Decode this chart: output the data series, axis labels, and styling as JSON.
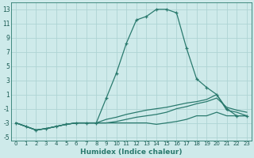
{
  "xlabel": "Humidex (Indice chaleur)",
  "ylabel": "",
  "background_color": "#ceeaea",
  "grid_color": "#aed4d4",
  "line_color": "#2a7a6e",
  "xlim": [
    -0.5,
    23.5
  ],
  "ylim": [
    -5.5,
    14.0
  ],
  "xticks": [
    0,
    1,
    2,
    3,
    4,
    5,
    6,
    7,
    8,
    9,
    10,
    11,
    12,
    13,
    14,
    15,
    16,
    17,
    18,
    19,
    20,
    21,
    22,
    23
  ],
  "yticks": [
    -5,
    -3,
    -1,
    1,
    3,
    5,
    7,
    9,
    11,
    13
  ],
  "lines": [
    {
      "x": [
        0,
        1,
        2,
        3,
        4,
        5,
        6,
        7,
        8,
        9,
        10,
        11,
        12,
        13,
        14,
        15,
        16,
        17,
        18,
        19,
        20,
        21,
        22,
        23
      ],
      "y": [
        -3.0,
        -3.5,
        -4.0,
        -3.8,
        -3.5,
        -3.2,
        -3.0,
        -3.0,
        -3.0,
        0.5,
        4.0,
        8.2,
        11.5,
        12.0,
        13.0,
        13.0,
        12.5,
        7.5,
        3.2,
        2.0,
        1.0,
        -1.0,
        -2.0,
        -2.0
      ],
      "marker": "+"
    },
    {
      "x": [
        0,
        1,
        2,
        3,
        4,
        5,
        6,
        7,
        8,
        9,
        10,
        11,
        12,
        13,
        14,
        15,
        16,
        17,
        18,
        19,
        20,
        21,
        22,
        23
      ],
      "y": [
        -3.0,
        -3.5,
        -4.0,
        -3.8,
        -3.5,
        -3.2,
        -3.0,
        -3.0,
        -3.0,
        -3.0,
        -3.0,
        -3.0,
        -3.0,
        -3.0,
        -3.2,
        -3.0,
        -2.8,
        -2.5,
        -2.0,
        -2.0,
        -1.5,
        -2.0,
        -2.0,
        -2.0
      ],
      "marker": null
    },
    {
      "x": [
        0,
        1,
        2,
        3,
        4,
        5,
        6,
        7,
        8,
        9,
        10,
        11,
        12,
        13,
        14,
        15,
        16,
        17,
        18,
        19,
        20,
        21,
        22,
        23
      ],
      "y": [
        -3.0,
        -3.5,
        -4.0,
        -3.8,
        -3.5,
        -3.2,
        -3.0,
        -3.0,
        -3.0,
        -3.0,
        -2.8,
        -2.5,
        -2.2,
        -2.0,
        -1.8,
        -1.5,
        -1.0,
        -0.7,
        -0.3,
        0.0,
        0.5,
        -0.8,
        -1.2,
        -1.5
      ],
      "marker": null
    },
    {
      "x": [
        0,
        1,
        2,
        3,
        4,
        5,
        6,
        7,
        8,
        9,
        10,
        11,
        12,
        13,
        14,
        15,
        16,
        17,
        18,
        19,
        20,
        21,
        22,
        23
      ],
      "y": [
        -3.0,
        -3.5,
        -4.0,
        -3.8,
        -3.5,
        -3.2,
        -3.0,
        -3.0,
        -3.0,
        -2.5,
        -2.2,
        -1.8,
        -1.5,
        -1.2,
        -1.0,
        -0.8,
        -0.5,
        -0.2,
        0.0,
        0.3,
        1.0,
        -1.2,
        -1.5,
        -2.0
      ],
      "marker": null
    }
  ]
}
